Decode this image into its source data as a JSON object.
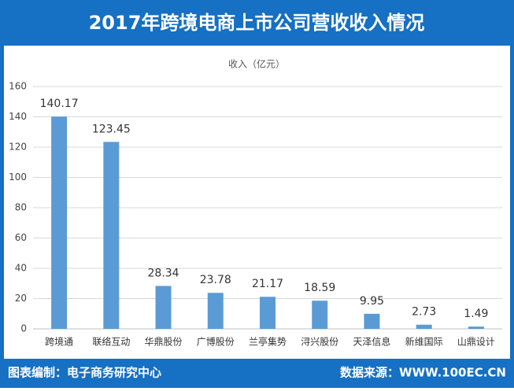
{
  "header": {
    "title": "2017年跨境电商上市公司营收收入情况"
  },
  "chart_data": {
    "type": "bar",
    "y_label": "收入（亿元）",
    "categories": [
      "跨境通",
      "联络互动",
      "华鼎股份",
      "广博股份",
      "兰亭集势",
      "浔兴股份",
      "天泽信息",
      "新维国际",
      "山鼎设计"
    ],
    "values": [
      140.17,
      123.45,
      28.34,
      23.78,
      21.17,
      18.59,
      9.95,
      2.73,
      1.49
    ],
    "color": "#5b9bd5",
    "ylim": [
      0,
      160
    ],
    "yticks": [
      0,
      20,
      40,
      60,
      80,
      100,
      120,
      140,
      160
    ],
    "grid": true
  },
  "footer": {
    "left": "图表编制：电子商务研究中心",
    "right": "数据来源：WWW.100EC.CN"
  }
}
